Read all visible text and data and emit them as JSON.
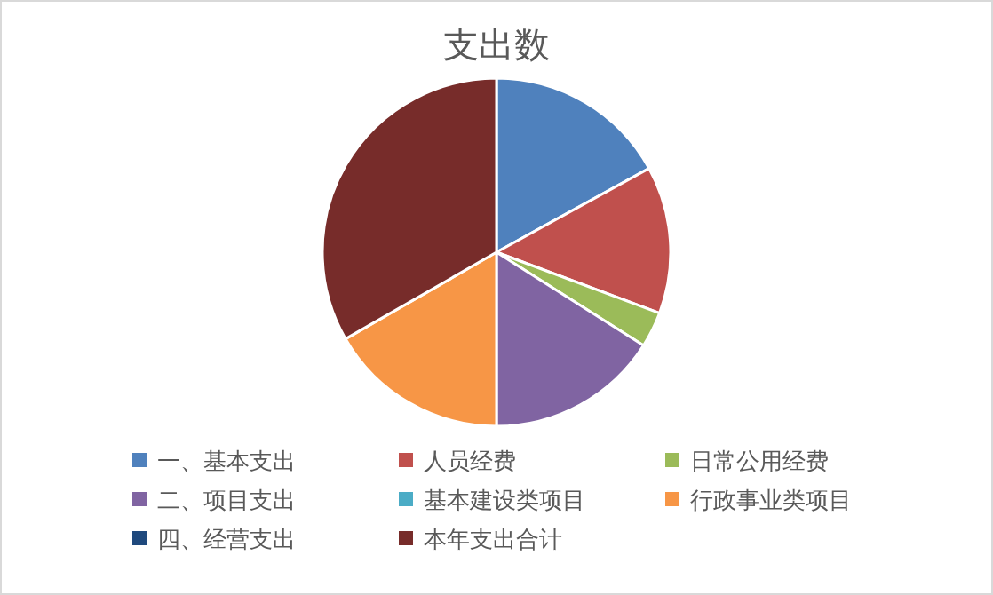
{
  "chart_data": {
    "type": "pie",
    "title": "支出数",
    "categories": [
      "一、基本支出",
      "人员经费",
      "日常公用经费",
      "二、项目支出",
      "基本建设类项目",
      "行政事业类项目",
      "四、经营支出",
      "本年支出合计"
    ],
    "values": [
      17.0,
      13.7,
      3.3,
      16.0,
      0,
      16.7,
      0,
      33.3
    ],
    "colors": [
      "#4f81bd",
      "#c0504d",
      "#9bbb59",
      "#8064a2",
      "#4bacc6",
      "#f79646",
      "#1f497d",
      "#772c2a"
    ],
    "legend": "bottom"
  }
}
